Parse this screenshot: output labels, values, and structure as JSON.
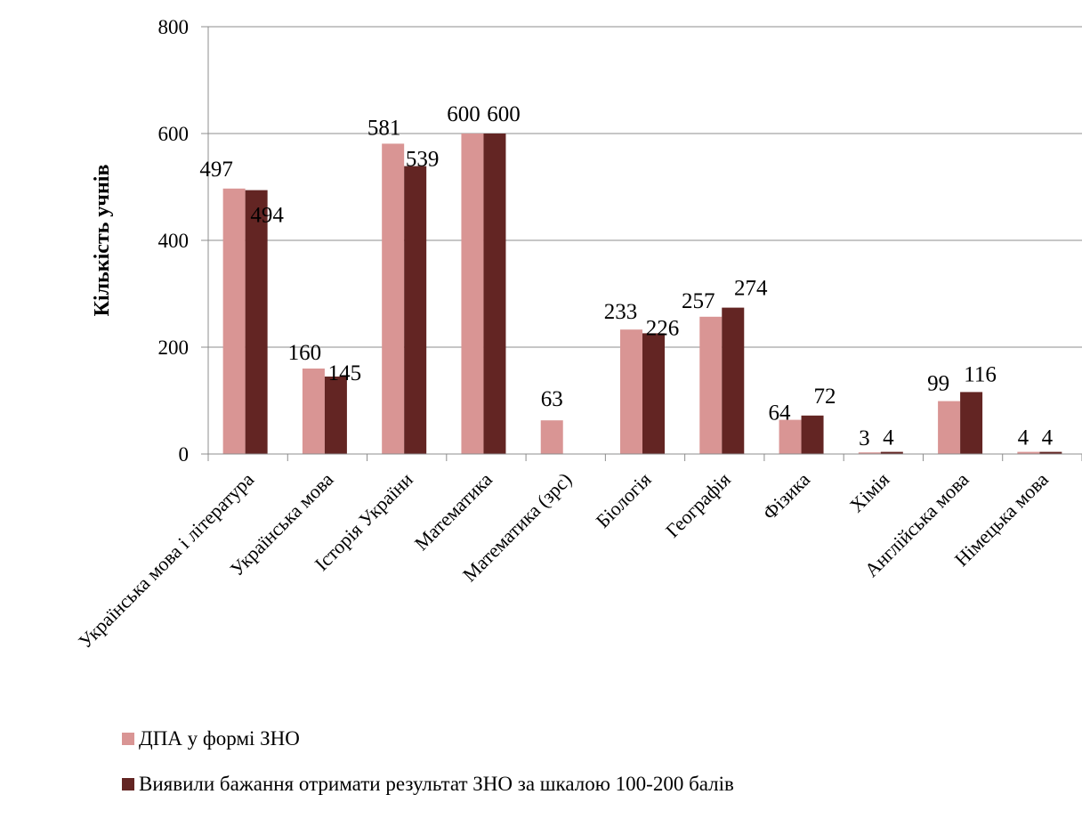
{
  "chart_data": {
    "type": "bar",
    "title": "",
    "xlabel": "",
    "ylabel": "Кількість учнів",
    "ylim": [
      0,
      800
    ],
    "yticks": [
      0,
      200,
      400,
      600,
      800
    ],
    "grid": true,
    "legend_position": "bottom-left",
    "categories": [
      "Українська мова і література",
      "Українська мова",
      "Історія України",
      "Математика",
      "Математика (зрс)",
      "Біологія",
      "Географія",
      "Фізика",
      "Хімія",
      "Англійська мова",
      "Німецька мова"
    ],
    "series": [
      {
        "name": "ДПА у формі ЗНО",
        "color": "#d99594",
        "values": [
          497,
          160,
          581,
          600,
          63,
          233,
          257,
          64,
          3,
          99,
          4
        ]
      },
      {
        "name": "Виявили бажання отримати результат ЗНО за шкалою 100-200 балів",
        "color": "#632523",
        "values": [
          494,
          145,
          539,
          600,
          null,
          226,
          274,
          72,
          4,
          116,
          4
        ]
      }
    ]
  }
}
